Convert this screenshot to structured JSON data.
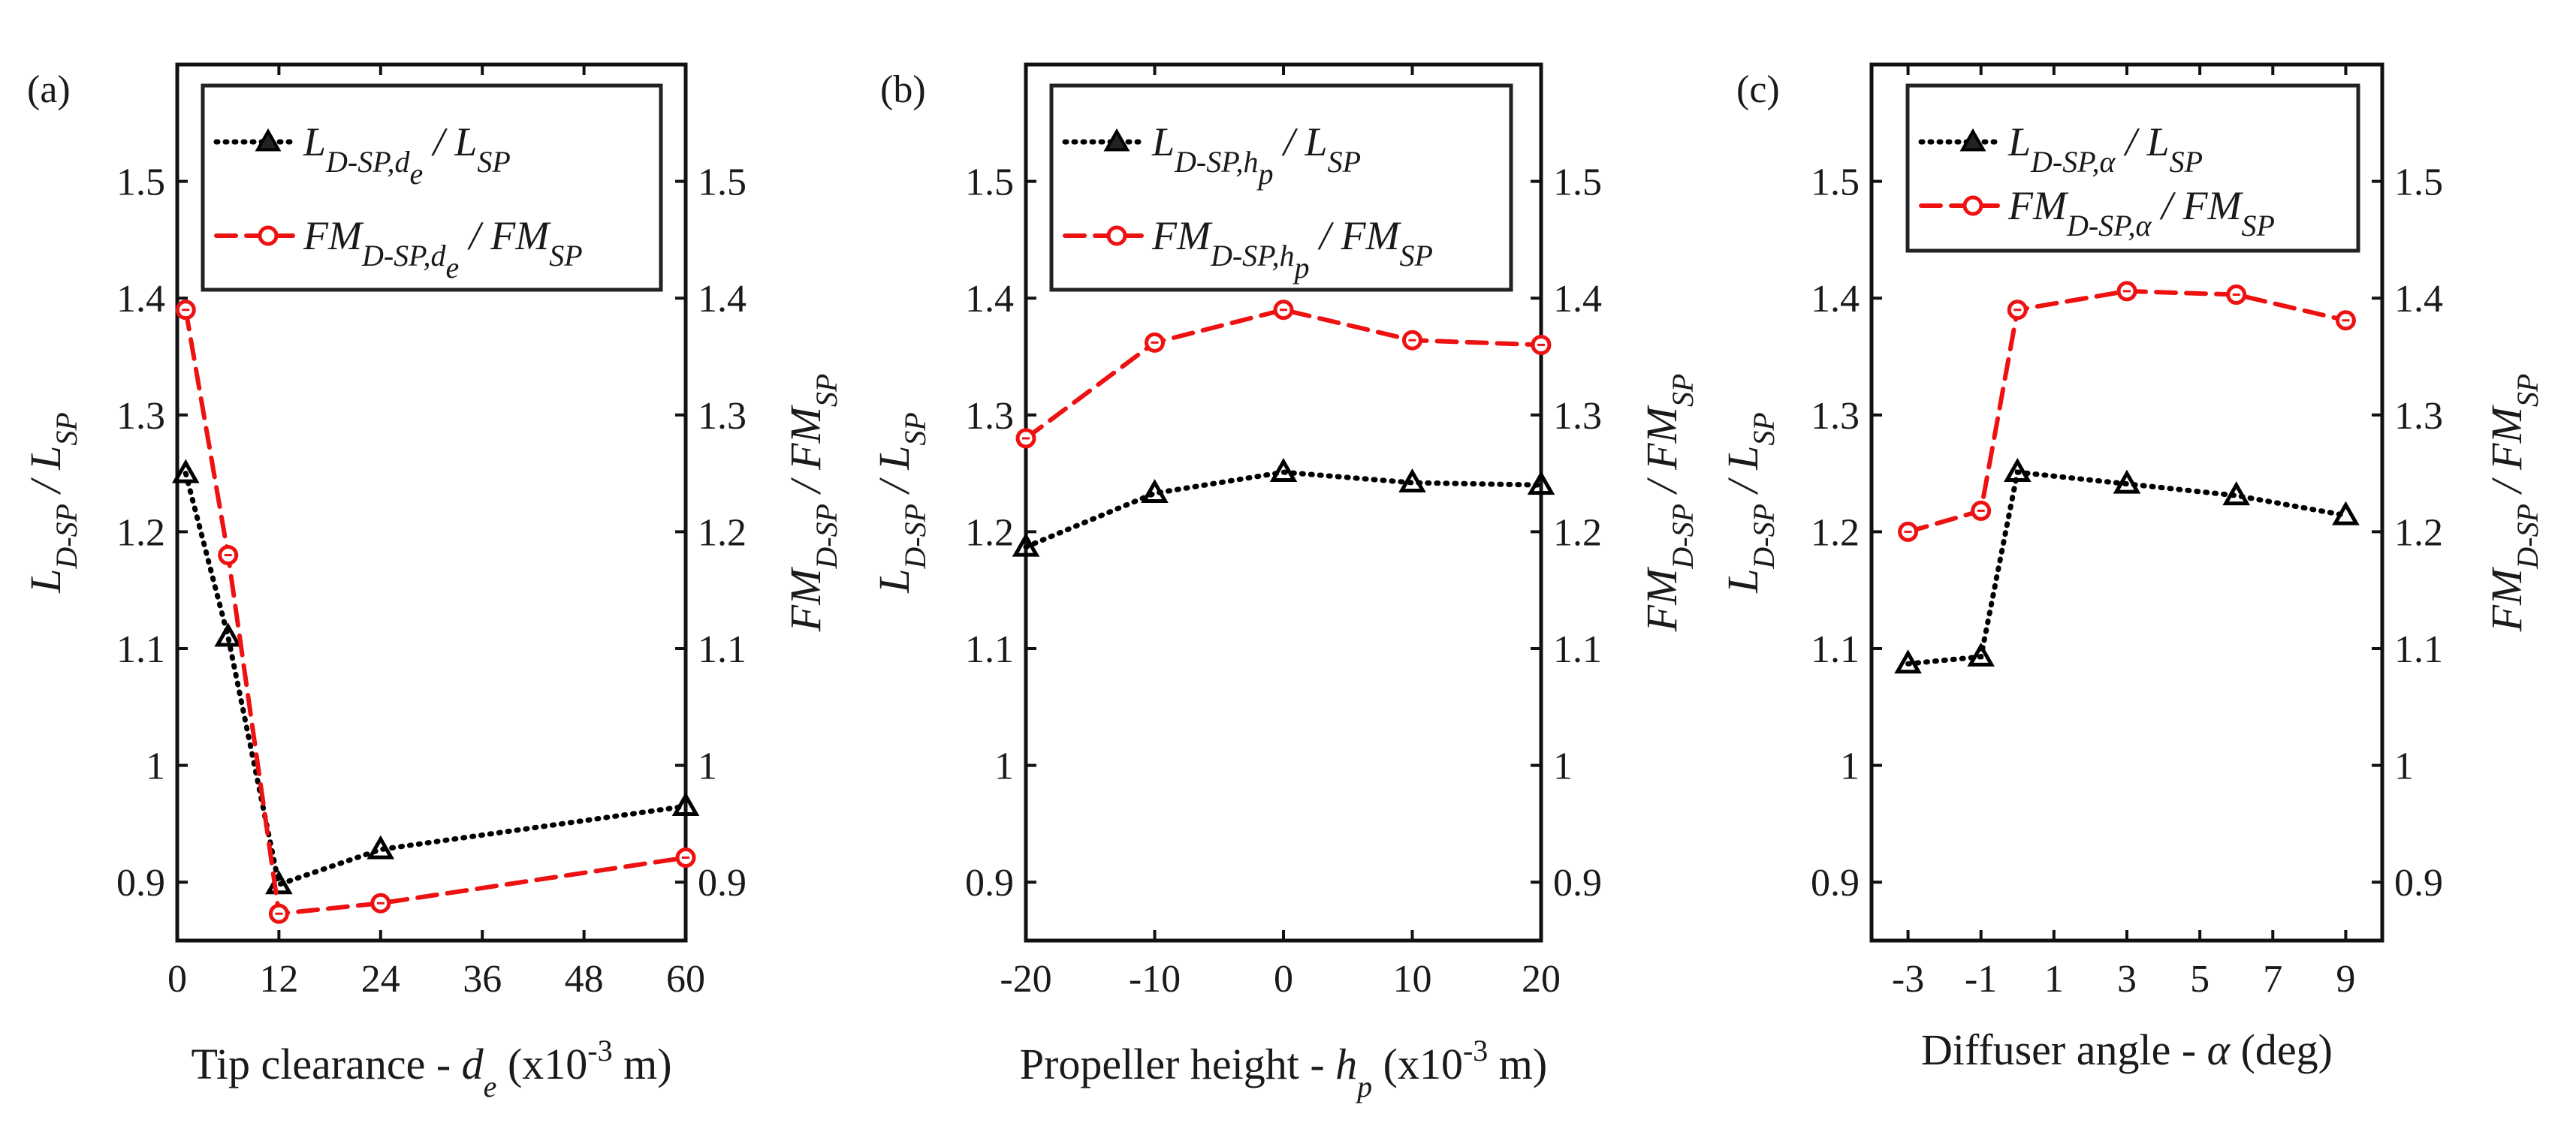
{
  "chart_data": [
    {
      "type": "line",
      "panel": "(a)",
      "xlabel": {
        "prefix": "Tip clearance - ",
        "var": "d",
        "var_sub": "e",
        "unit_pre": " (x10",
        "unit_sup": "-3",
        "unit_post": " m)"
      },
      "left_ylabel": {
        "main": "L",
        "sub": "D-SP",
        "rest": " / L",
        "sub2": "SP"
      },
      "right_ylabel": {
        "main": "FM",
        "sub": "D-SP",
        "rest": " / FM",
        "sub2": "SP"
      },
      "xlim": [
        0,
        60
      ],
      "ylim": [
        0.85,
        1.6
      ],
      "xticks": [
        0,
        12,
        24,
        36,
        48,
        60
      ],
      "xticklabels": [
        "0",
        "12",
        "24",
        "36",
        "48",
        "60"
      ],
      "yticks": [
        0.9,
        1,
        1.1,
        1.2,
        1.3,
        1.4,
        1.5
      ],
      "yticklabels": [
        "0.9",
        "1",
        "1.1",
        "1.2",
        "1.3",
        "1.4",
        "1.5"
      ],
      "series": [
        {
          "name": "L_D-SP,de / L_SP",
          "marker": "triangle",
          "style": "dotted",
          "color": "#000000",
          "x": [
            1,
            6,
            12,
            24,
            60
          ],
          "values": [
            1.25,
            1.11,
            0.898,
            0.928,
            0.965
          ]
        },
        {
          "name": "FM_D-SP,de / FM_SP",
          "marker": "circle",
          "style": "dashed",
          "color": "#ee1111",
          "x": [
            1,
            6,
            12,
            24,
            60
          ],
          "values": [
            1.39,
            1.18,
            0.873,
            0.882,
            0.921
          ]
        }
      ],
      "legend": [
        {
          "main": "L",
          "sub": "D-SP,",
          "subvar": "d",
          "subsub": "e",
          "rest": " / L",
          "sub2": "SP"
        },
        {
          "main": "FM",
          "sub": "D-SP,",
          "subvar": "d",
          "subsub": "e",
          "rest": " / FM",
          "sub2": "SP"
        }
      ]
    },
    {
      "type": "line",
      "panel": "(b)",
      "xlabel": {
        "prefix": "Propeller height - ",
        "var": "h",
        "var_sub": "p",
        "unit_pre": " (x10",
        "unit_sup": "-3",
        "unit_post": " m)"
      },
      "left_ylabel": {
        "main": "L",
        "sub": "D-SP",
        "rest": " / L",
        "sub2": "SP"
      },
      "right_ylabel": {
        "main": "FM",
        "sub": "D-SP",
        "rest": " / FM",
        "sub2": "SP"
      },
      "xlim": [
        -20,
        20
      ],
      "ylim": [
        0.85,
        1.6
      ],
      "xticks": [
        -20,
        -10,
        0,
        10,
        20
      ],
      "xticklabels": [
        "-20",
        "-10",
        "0",
        "10",
        "20"
      ],
      "yticks": [
        0.9,
        1,
        1.1,
        1.2,
        1.3,
        1.4,
        1.5
      ],
      "yticklabels": [
        "0.9",
        "1",
        "1.1",
        "1.2",
        "1.3",
        "1.4",
        "1.5"
      ],
      "series": [
        {
          "name": "L_D-SP,hp / L_SP",
          "marker": "triangle",
          "style": "dotted",
          "color": "#000000",
          "x": [
            -20,
            -10,
            0,
            10,
            20
          ],
          "values": [
            1.187,
            1.233,
            1.251,
            1.242,
            1.24
          ]
        },
        {
          "name": "FM_D-SP,hp / FM_SP",
          "marker": "circle",
          "style": "dashed",
          "color": "#ee1111",
          "x": [
            -20,
            -10,
            0,
            10,
            20
          ],
          "values": [
            1.28,
            1.362,
            1.39,
            1.364,
            1.36
          ]
        }
      ],
      "legend": [
        {
          "main": "L",
          "sub": "D-SP,",
          "subvar": "h",
          "subsub": "p",
          "rest": " / L",
          "sub2": "SP"
        },
        {
          "main": "FM",
          "sub": "D-SP,",
          "subvar": "h",
          "subsub": "p",
          "rest": " / FM",
          "sub2": "SP"
        }
      ]
    },
    {
      "type": "line",
      "panel": "(c)",
      "xlabel": {
        "prefix": "Diffuser angle - ",
        "var": "α",
        "var_sub": "",
        "unit_pre": " (deg)",
        "unit_sup": "",
        "unit_post": ""
      },
      "left_ylabel": {
        "main": "L",
        "sub": "D-SP",
        "rest": " / L",
        "sub2": "SP"
      },
      "right_ylabel": {
        "main": "FM",
        "sub": "D-SP",
        "rest": " / FM",
        "sub2": "SP"
      },
      "xlim": [
        -4,
        10
      ],
      "ylim": [
        0.85,
        1.6
      ],
      "xticks": [
        -3,
        -1,
        1,
        3,
        5,
        7,
        9
      ],
      "xticklabels": [
        "-3",
        "-1",
        "1",
        "3",
        "5",
        "7",
        "9"
      ],
      "yticks": [
        0.9,
        1,
        1.1,
        1.2,
        1.3,
        1.4,
        1.5
      ],
      "yticklabels": [
        "0.9",
        "1",
        "1.1",
        "1.2",
        "1.3",
        "1.4",
        "1.5"
      ],
      "series": [
        {
          "name": "L_D-SP,α / L_SP",
          "marker": "triangle",
          "style": "dotted",
          "color": "#000000",
          "x": [
            -3,
            -1,
            0,
            3,
            6,
            9
          ],
          "values": [
            1.087,
            1.093,
            1.251,
            1.241,
            1.231,
            1.214
          ]
        },
        {
          "name": "FM_D-SP,α / FM_SP",
          "marker": "circle",
          "style": "dashed",
          "color": "#ee1111",
          "x": [
            -3,
            -1,
            0,
            3,
            6,
            9
          ],
          "values": [
            1.2,
            1.218,
            1.39,
            1.406,
            1.403,
            1.381
          ]
        }
      ],
      "legend": [
        {
          "main": "L",
          "sub": "D-SP,α",
          "subvar": "",
          "subsub": "",
          "rest": " / L",
          "sub2": "SP"
        },
        {
          "main": "FM",
          "sub": "D-SP,α",
          "subvar": "",
          "subsub": "",
          "rest": " / FM",
          "sub2": "SP"
        }
      ]
    }
  ]
}
